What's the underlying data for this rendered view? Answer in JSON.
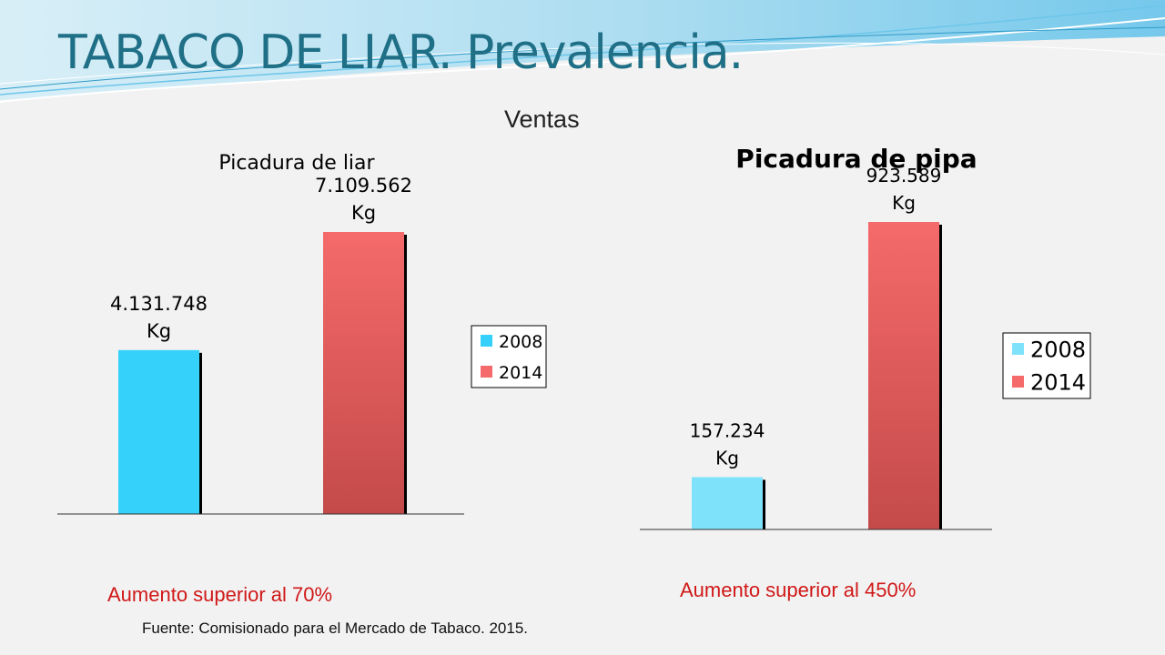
{
  "slide": {
    "title": "TABACO DE LIAR. Prevalencia.",
    "subtitle": "Ventas",
    "source": "Fuente: Comisionado  para el Mercado de Tabaco. 2015."
  },
  "chart_data": [
    {
      "type": "bar",
      "title": "Picadura de liar",
      "categories": [
        "2008",
        "2014"
      ],
      "values": [
        4131748,
        7109562
      ],
      "unit": "Kg",
      "value_labels": [
        "4.131.748",
        "7.109.562"
      ],
      "legend": [
        "2008",
        "2014"
      ],
      "legend_position": "right",
      "colors": [
        "#36d1fa",
        "#f56a6a"
      ],
      "grid": false,
      "note": "Aumento  superior al  70%"
    },
    {
      "type": "bar",
      "title": "Picadura de pipa",
      "categories": [
        "2008",
        "2014"
      ],
      "values": [
        157234,
        923589
      ],
      "unit": "Kg",
      "value_labels": [
        "157.234",
        "923.589"
      ],
      "legend": [
        "2008",
        "2014"
      ],
      "legend_position": "right",
      "colors": [
        "#7fe2fb",
        "#f56a6a"
      ],
      "grid": false,
      "note": "Aumento superior al 450%"
    }
  ]
}
